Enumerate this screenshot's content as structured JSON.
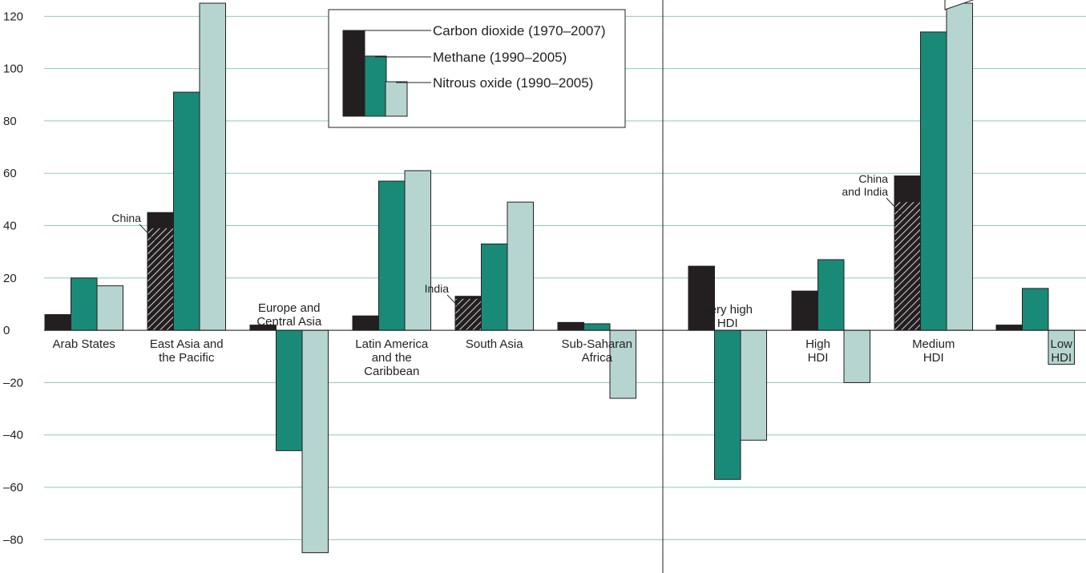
{
  "chart_data": {
    "type": "bar",
    "ylim": [
      -90,
      125
    ],
    "yticks": [
      120,
      100,
      80,
      60,
      40,
      20,
      0,
      -20,
      -40,
      -60,
      -80
    ],
    "grid": true,
    "legend": "top-center",
    "colors": {
      "carbon": "#231f20",
      "methane": "#1a8a78",
      "nitrous": "#b6d5d0",
      "grid": "#8fc8bf"
    },
    "series": [
      {
        "name": "Carbon dioxide (1970–2007)",
        "key": "carbon"
      },
      {
        "name": "Methane (1990–2005)",
        "key": "methane"
      },
      {
        "name": "Nitrous oxide (1990–2005)",
        "key": "nitrous"
      }
    ],
    "groups": [
      {
        "label": [
          "Arab States"
        ],
        "values": [
          6,
          20,
          17
        ]
      },
      {
        "label": [
          "East Asia and",
          "the Pacific"
        ],
        "values": [
          45,
          91,
          125
        ],
        "subset": {
          "label": "China",
          "value": 39
        }
      },
      {
        "label": [
          "Europe and",
          "Central Asia"
        ],
        "values": [
          2,
          -46,
          -85
        ]
      },
      {
        "label": [
          "Latin America",
          "and the",
          "Caribbean"
        ],
        "values": [
          5.5,
          57,
          61
        ]
      },
      {
        "label": [
          "South Asia"
        ],
        "values": [
          13,
          33,
          49
        ],
        "subset": {
          "label": "India",
          "value": 12
        }
      },
      {
        "label": [
          "Sub-Saharan",
          "Africa"
        ],
        "values": [
          3,
          2.5,
          -26
        ]
      },
      {
        "label": [
          "Very high",
          "HDI"
        ],
        "values": [
          24.5,
          -57,
          -42
        ]
      },
      {
        "label": [
          "High",
          "HDI"
        ],
        "values": [
          15,
          27,
          -20
        ]
      },
      {
        "label": [
          "Medium",
          "HDI"
        ],
        "values": [
          59,
          114,
          125
        ],
        "subset": {
          "label": "China and India",
          "value": 49
        }
      },
      {
        "label": [
          "Low",
          "HDI"
        ],
        "values": [
          2,
          16,
          -13
        ]
      }
    ]
  }
}
